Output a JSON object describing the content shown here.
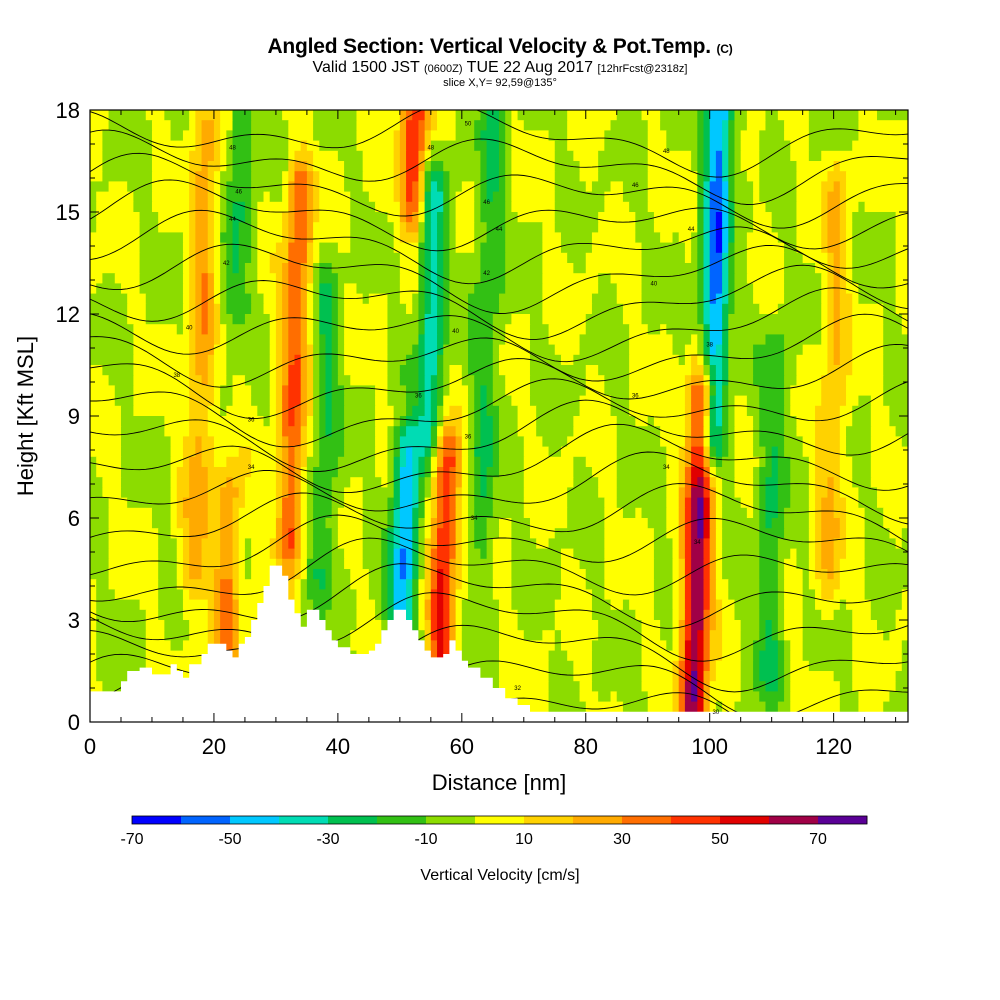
{
  "header": {
    "title_main": "Angled Section: Vertical Velocity & Pot.Temp.",
    "title_mark": "(C)",
    "valid_prefix": "Valid 1500 JST",
    "valid_utc": "(0600Z)",
    "valid_date": "TUE 22 Aug 2017",
    "valid_fcst": "[12hrFcst@2318z]",
    "slice": "slice X,Y= 92,59@135°"
  },
  "colors": {
    "terrain": "#ffffff",
    "contour": "#000000",
    "palette": [
      "#0000ff",
      "#0064ff",
      "#00c8ff",
      "#00dcb4",
      "#00c050",
      "#32c014",
      "#8cdc00",
      "#ffff00",
      "#ffd200",
      "#ffaa00",
      "#ff6e00",
      "#ff3200",
      "#e10000",
      "#a00046",
      "#5a0096"
    ]
  },
  "chart_data": {
    "type": "heatmap",
    "xlabel": "Distance [nm]",
    "ylabel": "Height [Kft MSL]",
    "xlim": [
      0,
      132
    ],
    "ylim": [
      0,
      18
    ],
    "x_ticks": [
      0,
      20,
      40,
      60,
      80,
      100,
      120
    ],
    "y_ticks": [
      0,
      3,
      6,
      9,
      12,
      15,
      18
    ],
    "colorbar": {
      "label": "Vertical Velocity [cm/s]",
      "bounds": [
        -70,
        80
      ],
      "step": 10,
      "tick_values": [
        -70,
        -50,
        -30,
        -10,
        10,
        30,
        50,
        70
      ]
    },
    "series": [
      {
        "name": "Vertical Velocity",
        "updrafts": [
          {
            "x": 18,
            "ymin": 5,
            "ymax": 17,
            "w": 25
          },
          {
            "x": 22,
            "ymin": 0,
            "ymax": 6,
            "w": 30
          },
          {
            "x": 33,
            "ymin": 6,
            "ymax": 15,
            "w": 40
          },
          {
            "x": 52,
            "ymin": 10,
            "ymax": 18,
            "w": 50
          },
          {
            "x": 57,
            "ymin": 1,
            "ymax": 7,
            "w": 50
          },
          {
            "x": 98,
            "ymin": 0,
            "ymax": 9,
            "w": 70
          },
          {
            "x": 120,
            "ymin": 5,
            "ymax": 15,
            "w": 20
          }
        ],
        "downdrafts": [
          {
            "x": 24,
            "ymin": 13,
            "ymax": 18,
            "w": -20
          },
          {
            "x": 38,
            "ymin": 5,
            "ymax": 12,
            "w": -20
          },
          {
            "x": 51,
            "ymin": 2,
            "ymax": 13,
            "w": -50
          },
          {
            "x": 55,
            "ymin": 9,
            "ymax": 15,
            "w": -35
          },
          {
            "x": 64,
            "ymin": 6,
            "ymax": 17,
            "w": -20
          },
          {
            "x": 101,
            "ymin": 9,
            "ymax": 18,
            "w": -55
          },
          {
            "x": 110,
            "ymin": 2,
            "ymax": 10,
            "w": -20
          }
        ]
      },
      {
        "name": "Pot.Temp.",
        "levels": [
          30,
          32,
          34,
          36,
          38,
          40,
          42,
          44,
          46,
          48,
          50
        ],
        "labels": [
          {
            "text": "30",
            "x": 101,
            "y": 0.3
          },
          {
            "text": "32",
            "x": 69,
            "y": 1.0
          },
          {
            "text": "34",
            "x": 98,
            "y": 5.3
          },
          {
            "text": "34",
            "x": 62,
            "y": 6.0
          },
          {
            "text": "34",
            "x": 93,
            "y": 7.5
          },
          {
            "text": "34",
            "x": 26,
            "y": 7.5
          },
          {
            "text": "36",
            "x": 61,
            "y": 8.4
          },
          {
            "text": "36",
            "x": 26,
            "y": 8.9
          },
          {
            "text": "36",
            "x": 53,
            "y": 9.6
          },
          {
            "text": "36",
            "x": 88,
            "y": 9.6
          },
          {
            "text": "38",
            "x": 14,
            "y": 10.2
          },
          {
            "text": "38",
            "x": 100,
            "y": 11.1
          },
          {
            "text": "40",
            "x": 16,
            "y": 11.6
          },
          {
            "text": "40",
            "x": 59,
            "y": 11.5
          },
          {
            "text": "40",
            "x": 91,
            "y": 12.9
          },
          {
            "text": "42",
            "x": 64,
            "y": 13.2
          },
          {
            "text": "42",
            "x": 22,
            "y": 13.5
          },
          {
            "text": "44",
            "x": 66,
            "y": 14.5
          },
          {
            "text": "44",
            "x": 97,
            "y": 14.5
          },
          {
            "text": "44",
            "x": 23,
            "y": 14.8
          },
          {
            "text": "46",
            "x": 64,
            "y": 15.3
          },
          {
            "text": "46",
            "x": 24,
            "y": 15.6
          },
          {
            "text": "46",
            "x": 88,
            "y": 15.8
          },
          {
            "text": "48",
            "x": 55,
            "y": 16.9
          },
          {
            "text": "48",
            "x": 23,
            "y": 16.9
          },
          {
            "text": "48",
            "x": 93,
            "y": 16.8
          },
          {
            "text": "50",
            "x": 61,
            "y": 17.6
          }
        ]
      }
    ],
    "terrain": [
      [
        0,
        0.9
      ],
      [
        2,
        0.9
      ],
      [
        5,
        1.2
      ],
      [
        6,
        1.5
      ],
      [
        8,
        1.6
      ],
      [
        10,
        1.4
      ],
      [
        12,
        1.4
      ],
      [
        13,
        1.7
      ],
      [
        14,
        1.5
      ],
      [
        15,
        1.3
      ],
      [
        16,
        1.7
      ],
      [
        18,
        2.0
      ],
      [
        19,
        2.3
      ],
      [
        22,
        2.1
      ],
      [
        23,
        1.9
      ],
      [
        24,
        2.3
      ],
      [
        25,
        2.5
      ],
      [
        26,
        3.0
      ],
      [
        27,
        3.5
      ],
      [
        28,
        4.0
      ],
      [
        29,
        4.6
      ],
      [
        31,
        4.3
      ],
      [
        32,
        3.6
      ],
      [
        33,
        3.2
      ],
      [
        34,
        2.8
      ],
      [
        35,
        3.3
      ],
      [
        37,
        3.0
      ],
      [
        38,
        2.7
      ],
      [
        39,
        2.4
      ],
      [
        40,
        2.2
      ],
      [
        42,
        2.0
      ],
      [
        45,
        2.1
      ],
      [
        46,
        2.3
      ],
      [
        47,
        2.7
      ],
      [
        48,
        3.0
      ],
      [
        49,
        3.3
      ],
      [
        51,
        3.0
      ],
      [
        52,
        2.7
      ],
      [
        53,
        2.4
      ],
      [
        54,
        2.1
      ],
      [
        55,
        1.9
      ],
      [
        57,
        2.0
      ],
      [
        58,
        2.4
      ],
      [
        59,
        2.1
      ],
      [
        60,
        1.8
      ],
      [
        61,
        1.6
      ],
      [
        63,
        1.3
      ],
      [
        65,
        1.0
      ],
      [
        67,
        0.7
      ],
      [
        69,
        0.5
      ],
      [
        71,
        0.3
      ],
      [
        132,
        0.3
      ]
    ]
  }
}
